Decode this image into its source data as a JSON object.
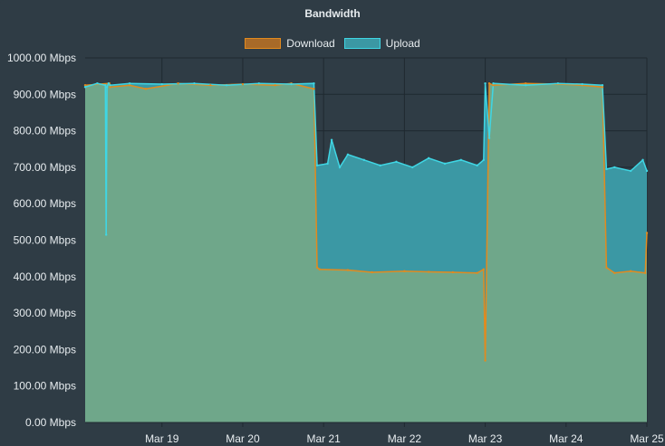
{
  "colors": {
    "background": "#2f3c45",
    "download_stroke": "#e28a1e",
    "download_fill": "#6fa78a",
    "upload_stroke": "#3fd6e4",
    "upload_fill": "#3b98a4",
    "grid": "#1f2930",
    "text": "#e7ecef"
  },
  "chart_data": {
    "type": "area",
    "title": "Bandwidth",
    "xlabel": "",
    "ylabel": "",
    "ylim": [
      0,
      1000
    ],
    "y_ticks": [
      "0.00 Mbps",
      "100.00 Mbps",
      "200.00 Mbps",
      "300.00 Mbps",
      "400.00 Mbps",
      "500.00 Mbps",
      "600.00 Mbps",
      "700.00 Mbps",
      "800.00 Mbps",
      "900.00 Mbps",
      "1000.00 Mbps"
    ],
    "x_ticks": [
      "Mar 19",
      "Mar 20",
      "Mar 21",
      "Mar 22",
      "Mar 23",
      "Mar 24",
      "Mar 25"
    ],
    "xlim": [
      "Mar 18 00:00",
      "Mar 25 00:00"
    ],
    "x_tick_positions": [
      1,
      2,
      3,
      4,
      5,
      6,
      7
    ],
    "x_domain": [
      0.05,
      7.0
    ],
    "grid": true,
    "legend_position": "top",
    "series": [
      {
        "name": "Download",
        "x": [
          0.05,
          0.35,
          0.36,
          0.6,
          0.8,
          1.2,
          1.6,
          2.0,
          2.4,
          2.6,
          2.88,
          2.92,
          2.95,
          3.3,
          3.6,
          4.0,
          4.3,
          4.6,
          4.9,
          4.98,
          5.0,
          5.05,
          5.1,
          5.5,
          5.9,
          6.2,
          6.45,
          6.5,
          6.6,
          6.8,
          6.98,
          7.0
        ],
        "values": [
          925,
          930,
          920,
          925,
          915,
          930,
          925,
          928,
          925,
          930,
          915,
          425,
          420,
          418,
          412,
          415,
          413,
          412,
          410,
          420,
          170,
          930,
          925,
          930,
          928,
          925,
          920,
          425,
          410,
          415,
          410,
          520
        ]
      },
      {
        "name": "Upload",
        "x": [
          0.05,
          0.2,
          0.3,
          0.31,
          0.32,
          0.34,
          0.36,
          0.6,
          1.0,
          1.4,
          1.8,
          2.2,
          2.6,
          2.88,
          2.92,
          3.05,
          3.1,
          3.2,
          3.3,
          3.5,
          3.7,
          3.9,
          4.1,
          4.3,
          4.5,
          4.7,
          4.9,
          4.98,
          5.0,
          5.05,
          5.1,
          5.5,
          5.9,
          6.2,
          6.45,
          6.5,
          6.6,
          6.8,
          6.95,
          7.0
        ],
        "values": [
          920,
          930,
          925,
          515,
          920,
          930,
          925,
          930,
          928,
          930,
          925,
          930,
          928,
          930,
          705,
          710,
          775,
          700,
          735,
          720,
          705,
          715,
          700,
          725,
          710,
          720,
          705,
          720,
          930,
          780,
          930,
          925,
          930,
          928,
          925,
          695,
          700,
          690,
          720,
          690
        ]
      }
    ]
  }
}
